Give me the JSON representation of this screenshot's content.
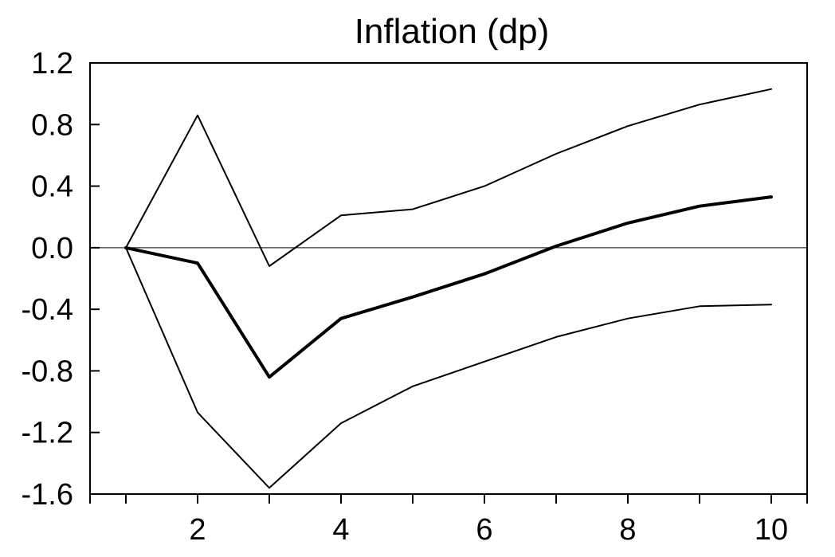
{
  "chart_data": {
    "type": "line",
    "title": "Inflation (dp)",
    "xlabel": "",
    "ylabel": "",
    "x": [
      1,
      2,
      3,
      4,
      5,
      6,
      7,
      8,
      9,
      10
    ],
    "xlim": [
      0.5,
      10.5
    ],
    "ylim": [
      -1.6,
      1.2
    ],
    "x_ticks": [
      1,
      2,
      3,
      4,
      5,
      6,
      7,
      8,
      9,
      10
    ],
    "x_tick_labels": [
      "2",
      "4",
      "6",
      "8",
      "10"
    ],
    "x_tick_label_values": [
      2,
      4,
      6,
      8,
      10
    ],
    "y_ticks": [
      1.2,
      0.8,
      0.4,
      0.0,
      -0.4,
      -0.8,
      -1.2,
      -1.6
    ],
    "y_tick_labels": [
      "1.2",
      "0.8",
      "0.4",
      "0.0",
      "-0.4",
      "-0.8",
      "-1.2",
      "-1.6"
    ],
    "zero_line": 0,
    "grid": false,
    "legend": "none",
    "series": [
      {
        "values": [
          0.0,
          0.86,
          -0.12,
          0.21,
          0.25,
          0.4,
          0.61,
          0.79,
          0.93,
          1.03
        ],
        "color": "#000000",
        "weight": "thin"
      },
      {
        "values": [
          0.0,
          -0.1,
          -0.84,
          -0.46,
          -0.32,
          -0.17,
          0.01,
          0.16,
          0.27,
          0.33
        ],
        "color": "#000000",
        "weight": "thick"
      },
      {
        "values": [
          0.0,
          -1.07,
          -1.56,
          -1.14,
          -0.9,
          -0.74,
          -0.58,
          -0.46,
          -0.38,
          -0.37
        ],
        "color": "#000000",
        "weight": "thin"
      }
    ]
  }
}
